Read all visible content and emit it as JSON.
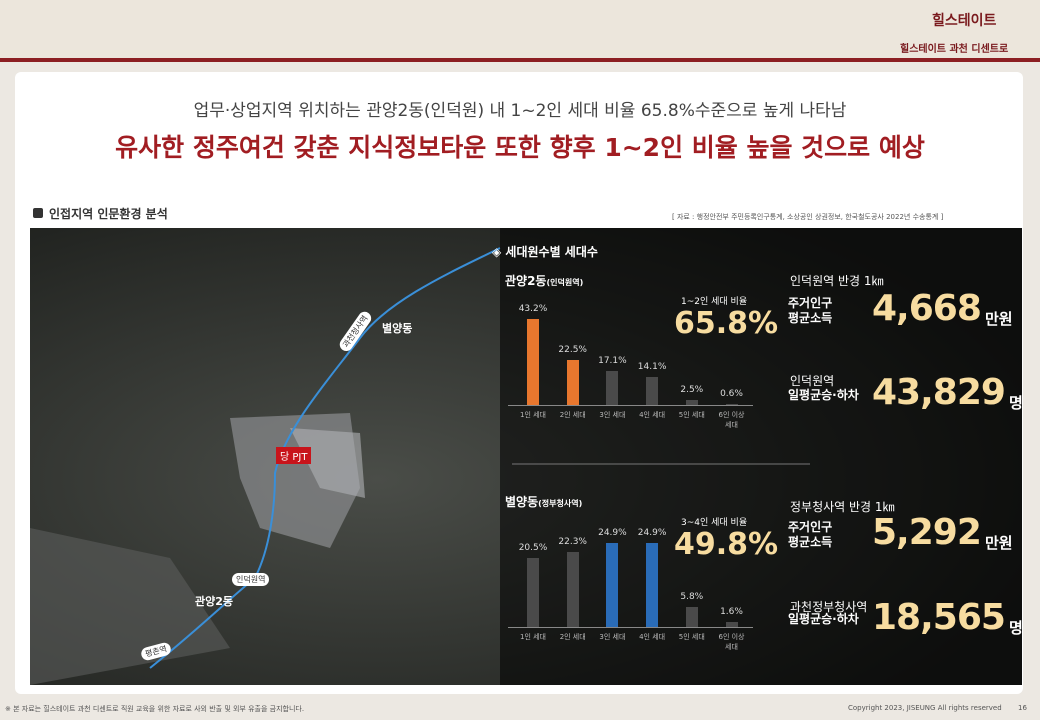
{
  "header": {
    "brand": "힐스테이트",
    "subtitle": "힐스테이트 과천 디센트로"
  },
  "headline": {
    "line1": "업무·상업지역 위치하는 관양2동(인덕원) 내 1~2인 세대 비율 65.8%수준으로 높게 나타남",
    "line2": "유사한 정주여건 갖춘 지식정보타운 또한 향후 1~2인 비율 높을 것으로 예상"
  },
  "section": {
    "title": "인접지역 인문환경 분석",
    "source": "[ 자료 : 행정안전부 주민등록인구통계, 소상공인 상권정보, 한국철도공사 2022년 수송통계 ]"
  },
  "map": {
    "labels": [
      "별양동",
      "과천청사역",
      "당 PJT",
      "인덕원역",
      "관양2동",
      "평촌역"
    ]
  },
  "panel_title": "◈ 세대원수별 세대수",
  "charts": [
    {
      "type": "bar",
      "title": "관양2동",
      "title_note": "(인덕원역)",
      "categories": [
        "1인 세대",
        "2인 세대",
        "3인 세대",
        "4인 세대",
        "5인 세대",
        "6인 이상 세대"
      ],
      "values": [
        43.2,
        22.5,
        17.1,
        14.1,
        2.5,
        0.6
      ],
      "value_labels": [
        "43.2%",
        "22.5%",
        "17.1%",
        "14.1%",
        "2.5%",
        "0.6%"
      ],
      "colors": [
        "#e8772e",
        "#e8772e",
        "#4a4a4a",
        "#4a4a4a",
        "#4a4a4a",
        "#4a4a4a"
      ],
      "highlight_label": "1~2인 세대 비율",
      "highlight_value": "65.8%"
    },
    {
      "type": "bar",
      "title": "별양동",
      "title_note": "(정부청사역)",
      "categories": [
        "1인 세대",
        "2인 세대",
        "3인 세대",
        "4인 세대",
        "5인 세대",
        "6인 이상 세대"
      ],
      "values": [
        20.5,
        22.3,
        24.9,
        24.9,
        5.8,
        1.6
      ],
      "value_labels": [
        "20.5%",
        "22.3%",
        "24.9%",
        "24.9%",
        "5.8%",
        "1.6%"
      ],
      "colors": [
        "#4a4a4a",
        "#4a4a4a",
        "#2a6cb8",
        "#2a6cb8",
        "#4a4a4a",
        "#4a4a4a"
      ],
      "highlight_label": "3~4인 세대 비율",
      "highlight_value": "49.8%"
    }
  ],
  "stats": [
    {
      "heading": "인덕원역 반경 1㎞",
      "label": "주거인구\n평균소득",
      "value": "4,668",
      "unit": "만원"
    },
    {
      "heading": "인덕원역",
      "label": "일평균승·하차",
      "value": "43,829",
      "unit": "명"
    },
    {
      "heading": "정부청사역 반경 1㎞",
      "label": "주거인구\n평균소득",
      "value": "5,292",
      "unit": "만원"
    },
    {
      "heading": "과천정부청사역",
      "label": "일평균승·하차",
      "value": "18,565",
      "unit": "명"
    }
  ],
  "footer": {
    "notice": "※ 본 자료는 힐스테이트 과천 디센트로 직원 교육을 위한 자료로 사외 반출 및 외부 유출을 금지합니다.",
    "copyright": "Copyright 2023, JISEUNG All rights reserved",
    "page": "16"
  }
}
